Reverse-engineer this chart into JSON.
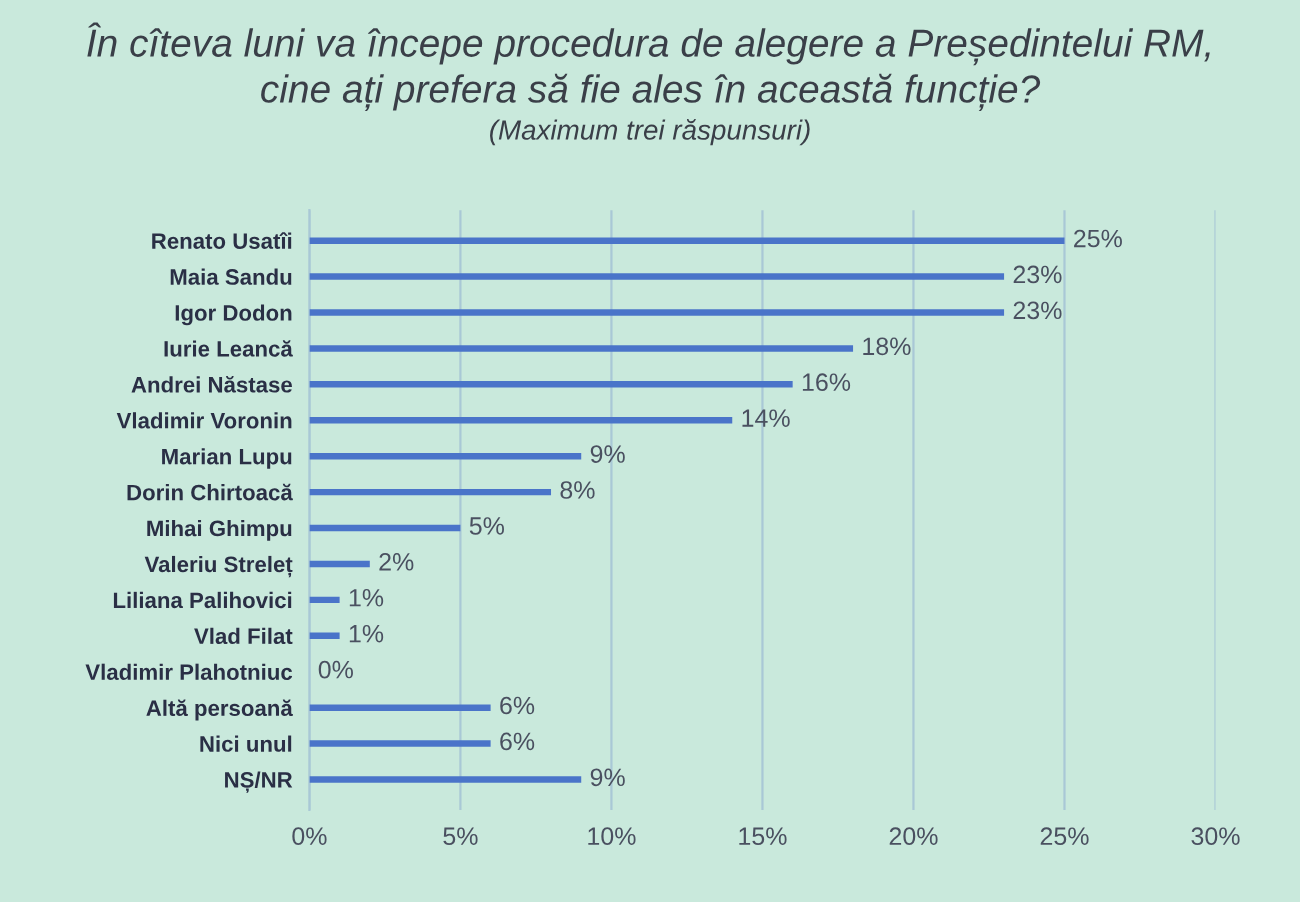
{
  "chart_data": {
    "type": "bar",
    "orientation": "horizontal",
    "title": "În cîteva luni va începe procedura de alegere a Președintelui RM,\ncine ați prefera să fie ales în această funcție?",
    "subtitle": "(Maximum trei răspunsuri)",
    "categories": [
      "Renato Usatîi",
      "Maia Sandu",
      "Igor Dodon",
      "Iurie Leancă",
      "Andrei Năstase",
      "Vladimir Voronin",
      "Marian Lupu",
      "Dorin Chirtoacă",
      "Mihai Ghimpu",
      "Valeriu Streleț",
      "Liliana Palihovici",
      "Vlad Filat",
      "Vladimir Plahotniuc",
      "Altă persoană",
      "Nici unul",
      "NȘ/NR"
    ],
    "values": [
      25,
      23,
      23,
      18,
      16,
      14,
      9,
      8,
      5,
      2,
      1,
      1,
      0,
      6,
      6,
      9
    ],
    "value_labels": [
      "25%",
      "23%",
      "23%",
      "18%",
      "16%",
      "14%",
      "9%",
      "8%",
      "5%",
      "2%",
      "1%",
      "1%",
      "0%",
      "6%",
      "6%",
      "9%"
    ],
    "color": "#4a74c9",
    "xlim": [
      0,
      30
    ],
    "xticks": [
      {
        "value": 0,
        "label": "0%"
      },
      {
        "value": 5,
        "label": "5%"
      },
      {
        "value": 10,
        "label": "10%"
      },
      {
        "value": 15,
        "label": "15%"
      },
      {
        "value": 20,
        "label": "20%"
      },
      {
        "value": 25,
        "label": "25%"
      },
      {
        "value": 30,
        "label": "30%"
      }
    ],
    "grid": "x",
    "legend": false
  }
}
